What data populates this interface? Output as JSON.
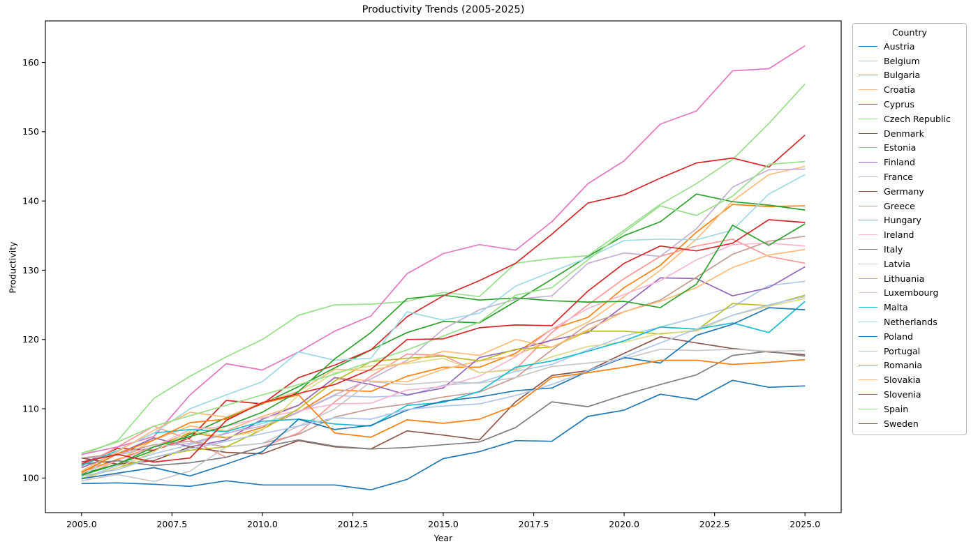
{
  "chart_data": {
    "type": "line",
    "title": "Productivity Trends (2005-2025)",
    "xlabel": "Year",
    "ylabel": "Productivity",
    "legend_title": "Country",
    "legend_position": "outside upper right",
    "grid": false,
    "x": [
      2005,
      2006,
      2007,
      2008,
      2009,
      2010,
      2011,
      2012,
      2013,
      2014,
      2015,
      2016,
      2017,
      2018,
      2019,
      2020,
      2021,
      2022,
      2023,
      2024,
      2025
    ],
    "xlim": [
      2004,
      2026
    ],
    "ylim": [
      95,
      166
    ],
    "xticks": [
      2005.0,
      2007.5,
      2010.0,
      2012.5,
      2015.0,
      2017.5,
      2020.0,
      2022.5,
      2025.0
    ],
    "xtick_labels": [
      "2005.0",
      "2007.5",
      "2010.0",
      "2012.5",
      "2015.0",
      "2017.5",
      "2020.0",
      "2022.5",
      "2025.0"
    ],
    "yticks": [
      100,
      110,
      120,
      130,
      140,
      150,
      160
    ],
    "series": [
      {
        "name": "Austria",
        "color": "#1f77b4",
        "values": [
          99.2,
          99.3,
          99.1,
          98.8,
          99.6,
          99.0,
          99.0,
          99.0,
          98.3,
          99.8,
          102.8,
          103.8,
          105.4,
          105.3,
          108.9,
          109.8,
          112.1,
          111.3,
          114.1,
          113.1,
          113.3
        ]
      },
      {
        "name": "Belgium",
        "color": "#aec7e8",
        "values": [
          99.9,
          101.8,
          103.5,
          104.8,
          106.4,
          107.9,
          109.5,
          111.9,
          111.7,
          111.9,
          113.4,
          113.8,
          115.4,
          116.4,
          118.5,
          120.5,
          121.8,
          123.2,
          124.7,
          127.8,
          128.4
        ]
      },
      {
        "name": "Bulgaria",
        "color": "#ff7f0e",
        "values": [
          100.9,
          102.7,
          104.5,
          106.5,
          105.8,
          107.3,
          109.5,
          112.7,
          112.5,
          114.7,
          116.0,
          116.0,
          118.0,
          121.5,
          123.2,
          127.5,
          130.7,
          135.5,
          139.5,
          139.2,
          139.3
        ]
      },
      {
        "name": "Croatia",
        "color": "#ffbb78",
        "values": [
          100.2,
          102.5,
          105.5,
          107.5,
          106.8,
          108.9,
          110.5,
          114.5,
          114.0,
          113.9,
          115.7,
          116.9,
          117.7,
          120.0,
          122.5,
          126.2,
          130.0,
          134.5,
          140.0,
          143.8,
          145.0
        ]
      },
      {
        "name": "Cyprus",
        "color": "#2ca02c",
        "values": [
          100.6,
          102.0,
          104.0,
          106.3,
          108.7,
          110.7,
          113.2,
          115.9,
          118.5,
          121.0,
          122.6,
          122.4,
          125.5,
          128.7,
          132.0,
          135.0,
          137.0,
          141.0,
          139.9,
          139.4,
          138.7
        ]
      },
      {
        "name": "Czech Republic",
        "color": "#98df8a",
        "values": [
          103.3,
          105.4,
          111.5,
          114.7,
          117.5,
          120.0,
          123.5,
          125.0,
          125.1,
          125.5,
          126.8,
          126.2,
          131.0,
          131.7,
          132.1,
          135.8,
          139.5,
          142.5,
          146.0,
          151.2,
          156.9
        ]
      },
      {
        "name": "Denmark",
        "color": "#d62728",
        "values": [
          102.0,
          104.3,
          104.0,
          105.8,
          111.2,
          110.7,
          114.5,
          116.3,
          118.5,
          123.3,
          126.3,
          128.5,
          131.0,
          135.2,
          139.7,
          140.9,
          143.3,
          145.5,
          146.2,
          144.9,
          149.5
        ]
      },
      {
        "name": "Estonia",
        "color": "#ff9896",
        "values": [
          101.7,
          104.5,
          107.5,
          105.5,
          103.0,
          104.5,
          106.5,
          111.0,
          114.7,
          117.9,
          117.7,
          115.2,
          115.7,
          121.0,
          125.0,
          128.8,
          132.0,
          133.5,
          134.5,
          132.0,
          131.0
        ]
      },
      {
        "name": "Finland",
        "color": "#9467bd",
        "values": [
          101.5,
          103.5,
          105.8,
          104.5,
          105.5,
          108.5,
          110.5,
          114.5,
          113.5,
          112.0,
          113.0,
          117.4,
          118.5,
          119.9,
          121.0,
          124.9,
          128.9,
          128.8,
          126.3,
          127.5,
          130.5
        ]
      },
      {
        "name": "France",
        "color": "#c5b0d5",
        "values": [
          102.8,
          103.3,
          104.5,
          105.0,
          106.5,
          107.5,
          109.5,
          112.0,
          114.3,
          117.0,
          121.5,
          124.3,
          125.8,
          126.3,
          131.0,
          132.5,
          132.0,
          136.0,
          142.0,
          144.5,
          144.6
        ]
      },
      {
        "name": "Germany",
        "color": "#8c564b",
        "values": [
          102.9,
          102.0,
          102.5,
          104.5,
          103.7,
          103.5,
          105.4,
          104.5,
          104.2,
          106.8,
          106.2,
          105.5,
          111.0,
          114.8,
          115.5,
          118.0,
          120.4,
          119.5,
          118.7,
          118.2,
          117.8
        ]
      },
      {
        "name": "Greece",
        "color": "#c49c94",
        "values": [
          102.9,
          103.5,
          104.8,
          105.3,
          104.5,
          105.0,
          106.3,
          108.8,
          110.0,
          110.7,
          111.7,
          112.4,
          114.5,
          118.5,
          122.2,
          124.0,
          125.7,
          129.0,
          132.3,
          134.2,
          134.9
        ]
      },
      {
        "name": "Hungary",
        "color": "#e377c2",
        "values": [
          103.4,
          104.5,
          106.0,
          112.0,
          116.5,
          115.6,
          118.2,
          121.2,
          123.4,
          129.5,
          132.4,
          133.7,
          132.9,
          137.0,
          142.5,
          145.8,
          151.1,
          153.0,
          158.8,
          159.1,
          162.4
        ]
      },
      {
        "name": "Ireland",
        "color": "#f7b6d2",
        "values": [
          100.7,
          102.5,
          104.5,
          107.0,
          107.5,
          108.7,
          109.7,
          110.7,
          110.8,
          112.7,
          113.2,
          114.7,
          117.5,
          121.5,
          124.5,
          126.5,
          128.5,
          131.5,
          133.7,
          133.9,
          133.5
        ]
      },
      {
        "name": "Italy",
        "color": "#7f7f7f",
        "values": [
          102.0,
          102.5,
          101.8,
          102.2,
          103.0,
          104.5,
          105.5,
          104.6,
          104.2,
          104.4,
          104.8,
          105.2,
          107.3,
          111.0,
          110.3,
          112.0,
          113.5,
          114.9,
          117.7,
          118.3,
          117.6
        ]
      },
      {
        "name": "Latvia",
        "color": "#c7c7c7",
        "values": [
          99.6,
          100.5,
          99.5,
          101.0,
          104.5,
          105.0,
          107.5,
          110.0,
          113.9,
          113.5,
          113.9,
          113.7,
          114.5,
          116.1,
          116.6,
          117.2,
          118.6,
          118.4,
          118.6,
          118.3,
          118.4
        ]
      },
      {
        "name": "Lithuania",
        "color": "#bcbd22",
        "values": [
          99.9,
          101.5,
          103.0,
          104.0,
          104.5,
          107.0,
          110.0,
          114.0,
          116.8,
          117.3,
          117.6,
          116.9,
          118.6,
          118.9,
          121.2,
          121.2,
          120.8,
          121.3,
          125.2,
          124.9,
          126.4
        ]
      },
      {
        "name": "Luxembourg",
        "color": "#dbdb8d",
        "values": [
          99.8,
          101.5,
          103.8,
          106.8,
          105.9,
          106.9,
          112.0,
          115.2,
          116.2,
          116.5,
          117.3,
          115.2,
          115.6,
          117.5,
          119.0,
          119.6,
          120.9,
          121.2,
          123.5,
          124.8,
          125.9
        ]
      },
      {
        "name": "Malta",
        "color": "#17becf",
        "values": [
          101.8,
          104.0,
          106.5,
          107.0,
          106.7,
          108.2,
          108.5,
          107.8,
          107.5,
          110.5,
          110.9,
          112.5,
          116.0,
          116.9,
          118.3,
          119.8,
          121.8,
          121.5,
          122.4,
          121.0,
          125.5
        ]
      },
      {
        "name": "Netherlands",
        "color": "#9edae5",
        "values": [
          100.1,
          104.0,
          106.5,
          110.0,
          112.0,
          113.9,
          118.2,
          117.0,
          117.3,
          124.0,
          122.8,
          123.8,
          127.7,
          129.8,
          131.8,
          134.3,
          134.5,
          134.4,
          135.8,
          141.0,
          143.8
        ]
      },
      {
        "name": "Poland",
        "color": "#1f77b4",
        "values": [
          99.9,
          100.7,
          101.5,
          100.3,
          102.0,
          103.8,
          108.5,
          107.0,
          107.6,
          109.8,
          111.1,
          111.7,
          112.6,
          113.0,
          115.4,
          117.4,
          116.6,
          120.6,
          122.2,
          124.6,
          124.3
        ]
      },
      {
        "name": "Portugal",
        "color": "#aec7e8",
        "values": [
          100.3,
          101.2,
          103.0,
          104.2,
          105.3,
          106.4,
          107.5,
          108.7,
          108.5,
          109.9,
          110.4,
          110.7,
          111.9,
          113.5,
          115.5,
          117.5,
          119.5,
          121.5,
          123.5,
          125.0,
          126.2
        ]
      },
      {
        "name": "Romania",
        "color": "#ff7f0e",
        "values": [
          100.8,
          103.5,
          105.5,
          108.0,
          108.5,
          110.8,
          112.0,
          106.5,
          105.9,
          108.4,
          107.9,
          108.5,
          110.5,
          114.5,
          115.2,
          116.0,
          117.0,
          117.0,
          116.4,
          116.7,
          117.1
        ]
      },
      {
        "name": "Slovakia",
        "color": "#ffbb78",
        "values": [
          101.0,
          103.8,
          106.9,
          109.5,
          108.8,
          110.9,
          112.5,
          115.7,
          115.5,
          116.7,
          118.3,
          117.7,
          120.0,
          118.9,
          121.4,
          124.0,
          125.5,
          127.5,
          130.4,
          132.2,
          133.0
        ]
      },
      {
        "name": "Slovenia",
        "color": "#2ca02c",
        "values": [
          100.4,
          102.0,
          104.5,
          106.0,
          107.5,
          109.5,
          112.5,
          117.2,
          121.0,
          125.9,
          126.4,
          125.7,
          126.0,
          125.6,
          125.4,
          125.5,
          124.6,
          128.0,
          136.5,
          133.6,
          136.7
        ]
      },
      {
        "name": "Spain",
        "color": "#98df8a",
        "values": [
          103.6,
          105.2,
          107.5,
          109.0,
          110.5,
          112.0,
          113.5,
          115.0,
          116.8,
          118.5,
          120.5,
          122.5,
          126.4,
          127.5,
          131.5,
          135.5,
          139.3,
          137.9,
          140.7,
          145.3,
          145.7
        ]
      },
      {
        "name": "Sweden",
        "color": "#d62728",
        "values": [
          102.3,
          103.4,
          102.3,
          102.9,
          108.3,
          110.9,
          112.2,
          113.5,
          115.7,
          120.0,
          120.1,
          121.7,
          122.1,
          122.0,
          127.0,
          131.0,
          133.5,
          132.8,
          133.9,
          137.3,
          136.9
        ]
      }
    ]
  }
}
